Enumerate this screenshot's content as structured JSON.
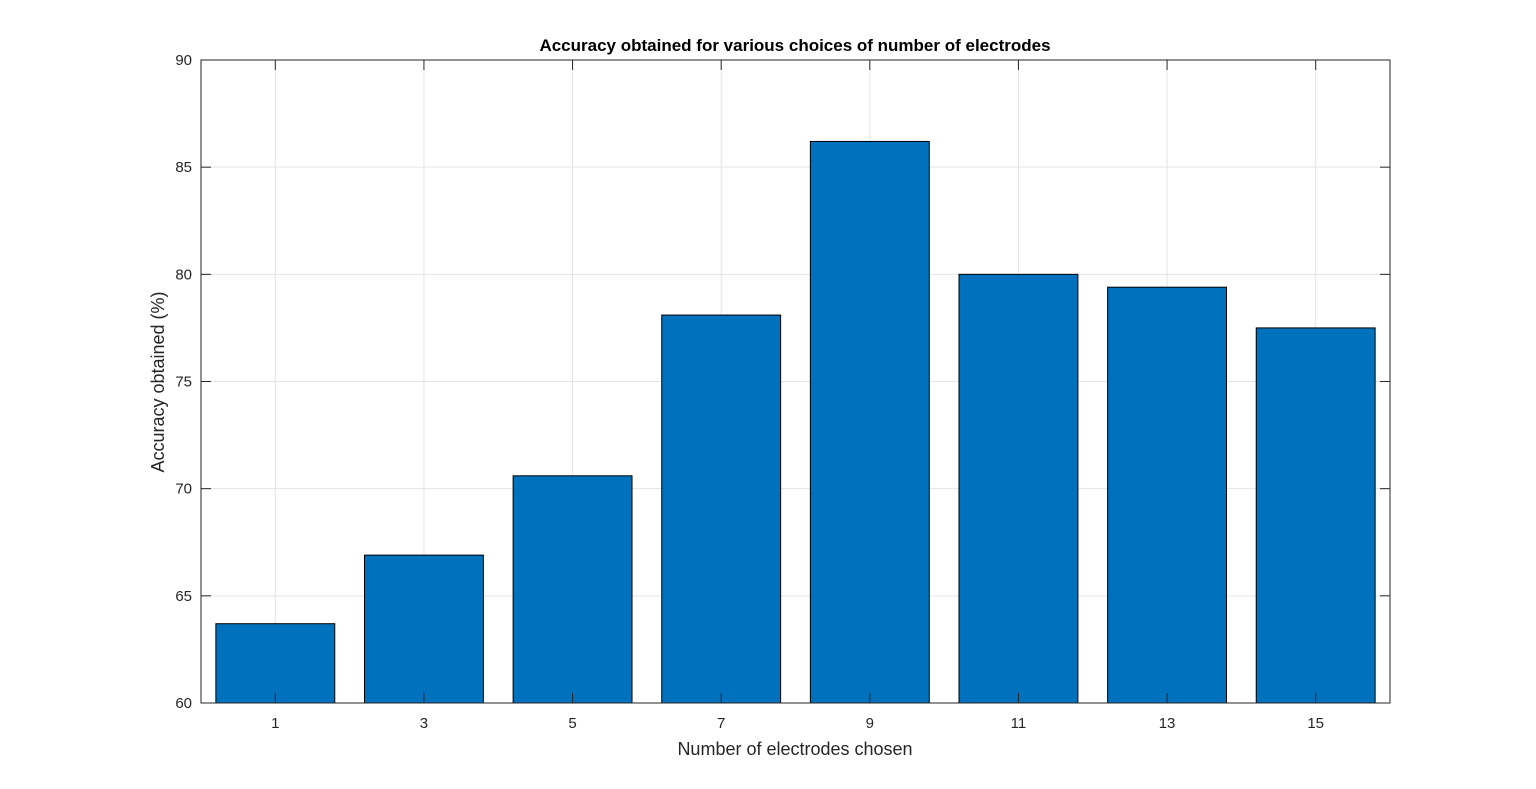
{
  "chart_data": {
    "type": "bar",
    "title": "Accuracy obtained for various choices of number of electrodes",
    "xlabel": "Number of electrodes chosen",
    "ylabel": "Accuracy obtained (%)",
    "categories": [
      "1",
      "3",
      "5",
      "7",
      "9",
      "11",
      "13",
      "15"
    ],
    "values": [
      63.7,
      66.9,
      70.6,
      78.1,
      86.2,
      80.0,
      79.4,
      77.5
    ],
    "ylim": [
      60,
      90
    ],
    "yticks": [
      "60",
      "65",
      "70",
      "75",
      "80",
      "85",
      "90"
    ],
    "grid": true,
    "bar_color": "#0072BD",
    "bar_edge_color": "#000000",
    "grid_color": "#e5e5e5",
    "axis_color": "#262626"
  }
}
